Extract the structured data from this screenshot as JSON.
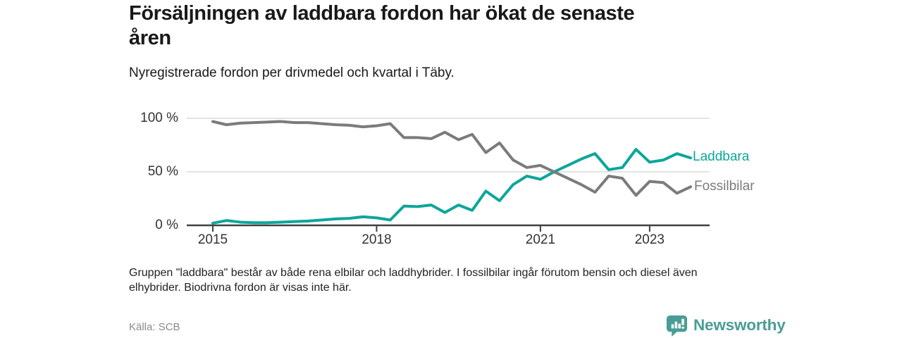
{
  "header": {
    "title": "Försäljningen av laddbara fordon har ökat de senaste\nåren",
    "subtitle": "Nyregistrerade fordon per drivmedel och kvartal i Täby."
  },
  "chart_data": {
    "type": "line",
    "unit": "%",
    "ylim": [
      0,
      100
    ],
    "grid": "horizontal",
    "legend_position": "right-of-line-ends",
    "y_ticks": [
      {
        "label": "100 %",
        "value": 100
      },
      {
        "label": "50 %",
        "value": 50
      },
      {
        "label": "0 %",
        "value": 0
      }
    ],
    "x_tick_labels": [
      "2015",
      "2018",
      "2021",
      "2023"
    ],
    "x_tick_quarter_indices": [
      0,
      12,
      24,
      32
    ],
    "quarters": [
      "2015 Q1",
      "2015 Q2",
      "2015 Q3",
      "2015 Q4",
      "2016 Q1",
      "2016 Q2",
      "2016 Q3",
      "2016 Q4",
      "2017 Q1",
      "2017 Q2",
      "2017 Q3",
      "2017 Q4",
      "2018 Q1",
      "2018 Q2",
      "2018 Q3",
      "2018 Q4",
      "2019 Q1",
      "2019 Q2",
      "2019 Q3",
      "2019 Q4",
      "2020 Q1",
      "2020 Q2",
      "2020 Q3",
      "2020 Q4",
      "2021 Q1",
      "2021 Q2",
      "2021 Q3",
      "2021 Q4",
      "2022 Q1",
      "2022 Q2",
      "2022 Q3",
      "2022 Q4",
      "2023 Q1",
      "2023 Q2",
      "2023 Q3",
      "2023 Q4"
    ],
    "series": [
      {
        "name": "Laddbara",
        "color": "#0ca69b",
        "values": [
          2,
          4.5,
          3,
          2.5,
          2.5,
          3,
          3.5,
          4,
          5,
          6,
          6.5,
          8,
          7,
          5,
          18,
          17.5,
          19,
          12,
          19,
          14,
          32,
          23,
          38,
          46,
          43,
          50,
          56,
          62,
          67,
          52,
          54,
          71,
          59,
          61,
          67,
          63
        ]
      },
      {
        "name": "Fossilbilar",
        "color": "#7b7b7b",
        "values": [
          97,
          94,
          95.5,
          96,
          96.5,
          97,
          96,
          96,
          95,
          94,
          93.5,
          92,
          93,
          95,
          82,
          82,
          81,
          87,
          80,
          85,
          68,
          77,
          61,
          54,
          56,
          50,
          44,
          38,
          31,
          46,
          44,
          28,
          41,
          40,
          30,
          36
        ]
      }
    ]
  },
  "footnote": "Gruppen \"laddbara\" består av både rena elbilar och laddhybrider. I fossilbilar ingår förutom bensin och diesel även\nelhybrider. Biodrivna fordon är visas inte här.",
  "source": "Källa: SCB",
  "branding": {
    "name": "Newsworthy",
    "color": "#4a9d95"
  }
}
